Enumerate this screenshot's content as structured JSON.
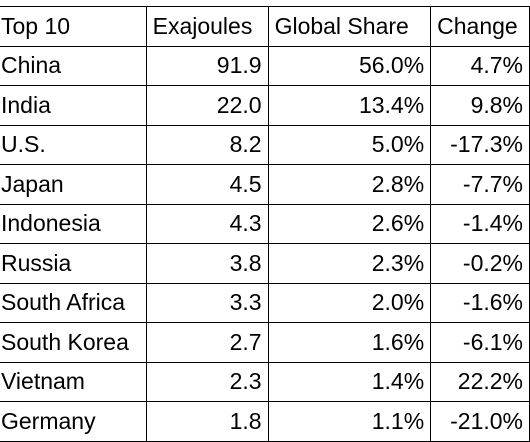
{
  "table": {
    "headers": [
      "Top 10",
      "Exajoules",
      "Global Share",
      "Change"
    ],
    "rows": [
      {
        "country": "China",
        "exajoules": "91.9",
        "share": "56.0%",
        "change": "4.7%"
      },
      {
        "country": "India",
        "exajoules": "22.0",
        "share": "13.4%",
        "change": "9.8%"
      },
      {
        "country": "U.S.",
        "exajoules": "8.2",
        "share": "5.0%",
        "change": "-17.3%"
      },
      {
        "country": "Japan",
        "exajoules": "4.5",
        "share": "2.8%",
        "change": "-7.7%"
      },
      {
        "country": "Indonesia",
        "exajoules": "4.3",
        "share": "2.6%",
        "change": "-1.4%"
      },
      {
        "country": "Russia",
        "exajoules": "3.8",
        "share": "2.3%",
        "change": "-0.2%"
      },
      {
        "country": "South Africa",
        "exajoules": "3.3",
        "share": "2.0%",
        "change": "-1.6%"
      },
      {
        "country": "South Korea",
        "exajoules": "2.7",
        "share": "1.6%",
        "change": "-6.1%"
      },
      {
        "country": "Vietnam",
        "exajoules": "2.3",
        "share": "1.4%",
        "change": "22.2%"
      },
      {
        "country": "Germany",
        "exajoules": "1.8",
        "share": "1.1%",
        "change": "-21.0%"
      }
    ]
  }
}
